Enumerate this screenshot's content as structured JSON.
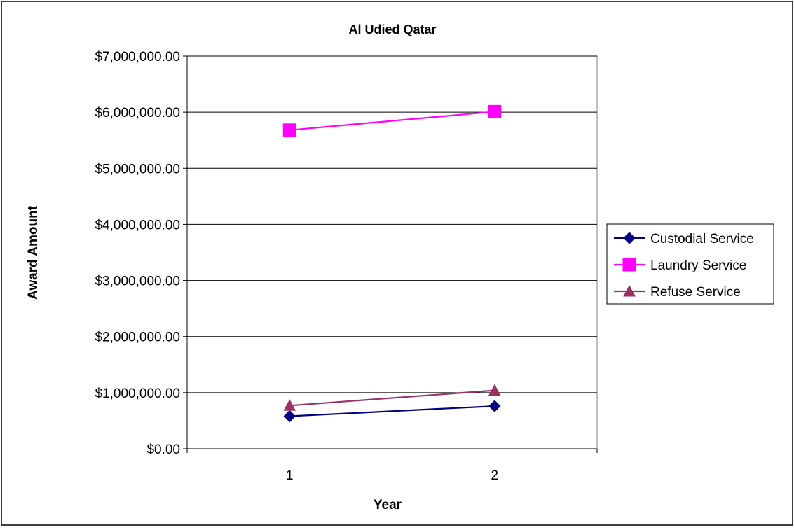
{
  "chart_data": {
    "type": "line",
    "title": "Al Udied Qatar",
    "xlabel": "Year",
    "ylabel": "Award Amount",
    "categories": [
      "1",
      "2"
    ],
    "ylim": [
      0,
      7000000
    ],
    "yticks": [
      0,
      1000000,
      2000000,
      3000000,
      4000000,
      5000000,
      6000000,
      7000000
    ],
    "ytick_labels": [
      "$0.00",
      "$1,000,000.00",
      "$2,000,000.00",
      "$3,000,000.00",
      "$4,000,000.00",
      "$5,000,000.00",
      "$6,000,000.00",
      "$7,000,000.00"
    ],
    "grid": true,
    "legend_position": "right",
    "series": [
      {
        "name": "Custodial Service",
        "values": [
          580000,
          760000
        ],
        "color": "#000080",
        "marker": "diamond"
      },
      {
        "name": "Laundry Service",
        "values": [
          5680000,
          6010000
        ],
        "color": "#FF00FF",
        "marker": "square"
      },
      {
        "name": "Refuse Service",
        "values": [
          770000,
          1040000
        ],
        "color": "#993366",
        "marker": "triangle"
      }
    ]
  }
}
